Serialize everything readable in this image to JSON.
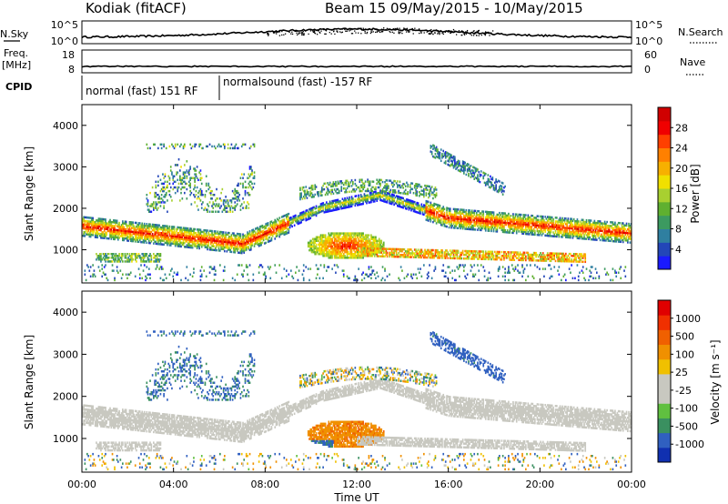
{
  "header": {
    "station": "Kodiak (fitACF)",
    "beam": "Beam 15 09/May/2015 - 10/May/2015"
  },
  "sky_panel": {
    "left_label": "N.Sky",
    "right_label": "N.Search",
    "left_ticks": [
      "10^5",
      "10^0"
    ],
    "right_ticks": [
      "10^5",
      "10^0"
    ]
  },
  "freq_panel": {
    "label_line1": "Freq.",
    "label_line2": "[MHz]",
    "left_ticks": [
      "18",
      "8"
    ],
    "right_label": "Nave",
    "right_ticks": [
      "60",
      "0"
    ]
  },
  "cpid_panel": {
    "label": "CPID",
    "modes": [
      {
        "text": "normal (fast) 151 RF",
        "start_hour": 0,
        "end_hour": 6.0
      },
      {
        "text": "normalsound (fast) -157 RF",
        "start_hour": 6.0,
        "end_hour": 24
      }
    ]
  },
  "chart_data": [
    {
      "type": "heatmap",
      "name": "power",
      "ylabel": "Slant Range [km]",
      "yticks": [
        "1000",
        "2000",
        "3000",
        "4000"
      ],
      "ylim": [
        200,
        4500
      ],
      "xlim": [
        0,
        24
      ],
      "colorbar": {
        "label": "Power [dB]",
        "ticks": [
          "4",
          "8",
          "12",
          "16",
          "20",
          "24",
          "28"
        ],
        "colors": [
          "#1a1aff",
          "#2346b8",
          "#2f7fa0",
          "#3c9a60",
          "#5fb030",
          "#a8d030",
          "#f0e000",
          "#f7b000",
          "#ff8000",
          "#ff4000",
          "#f00000",
          "#d00000"
        ]
      }
    },
    {
      "type": "heatmap",
      "name": "velocity",
      "ylabel": "Slant Range [km]",
      "yticks": [
        "1000",
        "2000",
        "3000",
        "4000"
      ],
      "ylim": [
        200,
        4500
      ],
      "xlim": [
        0,
        24
      ],
      "xlabel": "Time UT",
      "xticks": [
        "00:00",
        "04:00",
        "08:00",
        "12:00",
        "16:00",
        "20:00",
        "00:00"
      ],
      "colorbar": {
        "label": "Velocity [m s⁻¹]",
        "ticks": [
          "1000",
          "500",
          "100",
          "25",
          "-25",
          "-100",
          "-500",
          "-1000"
        ],
        "colors": [
          "#1030b0",
          "#3060c0",
          "#3a9060",
          "#60c040",
          "#c8c8c0",
          "#c8c8c0",
          "#f0c000",
          "#f09000",
          "#f06000",
          "#f03000",
          "#e00000"
        ]
      }
    }
  ]
}
